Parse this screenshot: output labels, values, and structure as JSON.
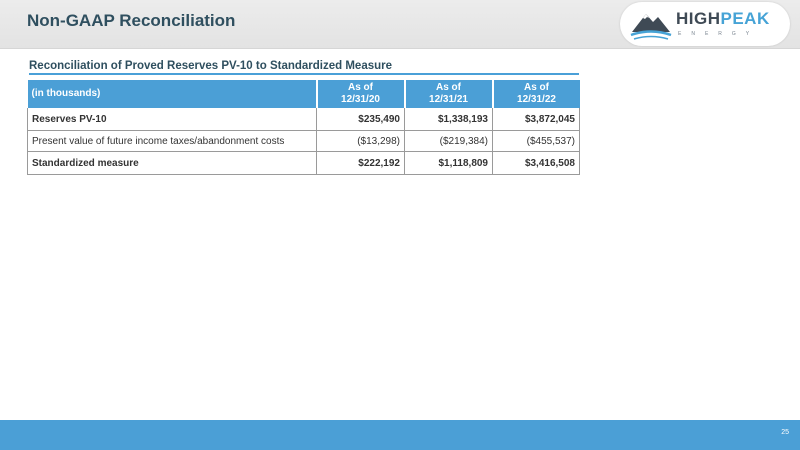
{
  "header": {
    "title": "Non-GAAP Reconciliation",
    "logo": {
      "word_a": "HIGH",
      "word_b": "PEAK",
      "subtitle": "ENERGY"
    }
  },
  "section": {
    "title": "Reconciliation of Proved Reserves PV-10 to Standardized Measure"
  },
  "table": {
    "label_header": "(in thousands)",
    "columns": [
      {
        "line1": "As of",
        "line2": "12/31/20"
      },
      {
        "line1": "As of",
        "line2": "12/31/21"
      },
      {
        "line1": "As of",
        "line2": "12/31/22"
      }
    ],
    "rows": [
      {
        "label": "Reserves PV-10",
        "values": [
          "$235,490",
          "$1,338,193",
          "$3,872,045"
        ]
      },
      {
        "label": "Present value of future income taxes/abandonment costs",
        "values": [
          "($13,298)",
          "($219,384)",
          "($455,537)"
        ]
      },
      {
        "label": "Standardized measure",
        "values": [
          "$222,192",
          "$1,118,809",
          "$3,416,508"
        ]
      }
    ]
  },
  "footer": {
    "page_number": "25"
  },
  "colors": {
    "accent": "#4b9fd6",
    "title": "#2f4f5f",
    "logo_dark": "#3f4a55"
  }
}
